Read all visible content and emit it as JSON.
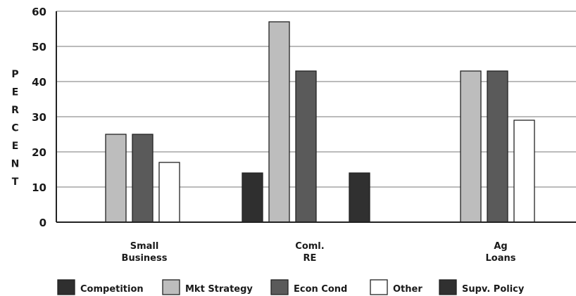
{
  "chart_data": {
    "type": "bar",
    "ylabel": "PERCENT",
    "ylim": [
      0,
      60
    ],
    "yticks": [
      "0",
      "10",
      "20",
      "30",
      "40",
      "50",
      "60"
    ],
    "grid": true,
    "legend_position": "bottom",
    "categories": [
      [
        "Small",
        "Business"
      ],
      [
        "Coml.",
        "RE"
      ],
      [
        "Ag",
        "Loans"
      ]
    ],
    "series": [
      {
        "name": "Competition",
        "color": "#2f2f2f",
        "values": [
          0,
          14,
          0
        ]
      },
      {
        "name": "Mkt Strategy",
        "color": "#bdbdbd",
        "values": [
          25,
          57,
          43
        ]
      },
      {
        "name": "Econ Cond",
        "color": "#5a5a5a",
        "values": [
          25,
          43,
          43
        ]
      },
      {
        "name": "Other",
        "color": "#ffffff",
        "values": [
          17,
          0,
          29
        ]
      },
      {
        "name": "Supv. Policy",
        "color": "#303030",
        "values": [
          0,
          14,
          0
        ]
      }
    ]
  }
}
